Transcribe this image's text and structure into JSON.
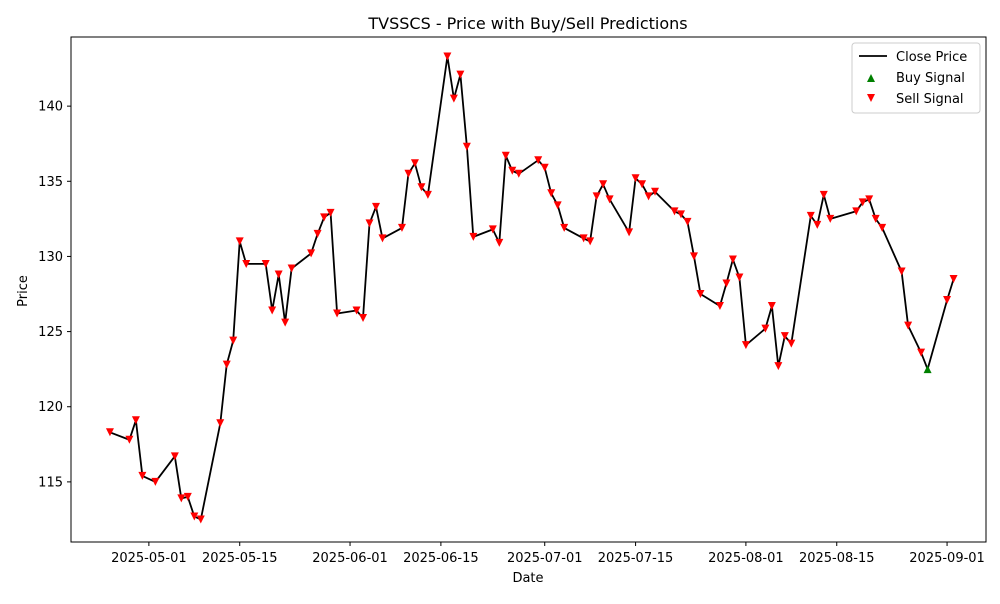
{
  "chart_data": {
    "type": "line",
    "title": "TVSSCS - Price with Buy/Sell Predictions",
    "xlabel": "Date",
    "ylabel": "Price",
    "xlim": [
      "2025-04-19",
      "2025-09-07"
    ],
    "ylim": [
      111.0,
      144.6
    ],
    "x_ticks": [
      "2025-05-01",
      "2025-05-15",
      "2025-06-01",
      "2025-06-15",
      "2025-07-01",
      "2025-07-15",
      "2025-08-01",
      "2025-08-15",
      "2025-09-01"
    ],
    "y_ticks": [
      115,
      120,
      125,
      130,
      135,
      140
    ],
    "grid": false,
    "legend_position": "top-right",
    "legend": [
      "Close Price",
      "Buy Signal",
      "Sell Signal"
    ],
    "colors": {
      "line": "#000000",
      "buy": "#008000",
      "sell": "#ff0000"
    },
    "series": [
      {
        "name": "Close Price",
        "points": [
          [
            "2025-04-25",
            118.3
          ],
          [
            "2025-04-28",
            117.8
          ],
          [
            "2025-04-29",
            119.1
          ],
          [
            "2025-04-30",
            115.4
          ],
          [
            "2025-05-02",
            115.0
          ],
          [
            "2025-05-05",
            116.7
          ],
          [
            "2025-05-06",
            113.9
          ],
          [
            "2025-05-07",
            114.0
          ],
          [
            "2025-05-08",
            112.7
          ],
          [
            "2025-05-09",
            112.5
          ],
          [
            "2025-05-12",
            118.9
          ],
          [
            "2025-05-13",
            122.8
          ],
          [
            "2025-05-14",
            124.4
          ],
          [
            "2025-05-15",
            131.0
          ],
          [
            "2025-05-16",
            129.5
          ],
          [
            "2025-05-19",
            129.5
          ],
          [
            "2025-05-20",
            126.4
          ],
          [
            "2025-05-21",
            128.8
          ],
          [
            "2025-05-22",
            125.6
          ],
          [
            "2025-05-23",
            129.2
          ],
          [
            "2025-05-26",
            130.2
          ],
          [
            "2025-05-27",
            131.5
          ],
          [
            "2025-05-28",
            132.6
          ],
          [
            "2025-05-29",
            132.9
          ],
          [
            "2025-05-30",
            126.2
          ],
          [
            "2025-06-02",
            126.4
          ],
          [
            "2025-06-03",
            125.9
          ],
          [
            "2025-06-04",
            132.2
          ],
          [
            "2025-06-05",
            133.3
          ],
          [
            "2025-06-06",
            131.2
          ],
          [
            "2025-06-09",
            131.9
          ],
          [
            "2025-06-10",
            135.5
          ],
          [
            "2025-06-11",
            136.2
          ],
          [
            "2025-06-12",
            134.6
          ],
          [
            "2025-06-13",
            134.1
          ],
          [
            "2025-06-16",
            143.3
          ],
          [
            "2025-06-17",
            140.5
          ],
          [
            "2025-06-18",
            142.1
          ],
          [
            "2025-06-19",
            137.3
          ],
          [
            "2025-06-20",
            131.3
          ],
          [
            "2025-06-23",
            131.8
          ],
          [
            "2025-06-24",
            130.9
          ],
          [
            "2025-06-25",
            136.7
          ],
          [
            "2025-06-26",
            135.7
          ],
          [
            "2025-06-27",
            135.5
          ],
          [
            "2025-06-30",
            136.4
          ],
          [
            "2025-07-01",
            135.9
          ],
          [
            "2025-07-02",
            134.2
          ],
          [
            "2025-07-03",
            133.4
          ],
          [
            "2025-07-04",
            131.9
          ],
          [
            "2025-07-07",
            131.2
          ],
          [
            "2025-07-08",
            131.0
          ],
          [
            "2025-07-09",
            134.0
          ],
          [
            "2025-07-10",
            134.8
          ],
          [
            "2025-07-11",
            133.8
          ],
          [
            "2025-07-14",
            131.6
          ],
          [
            "2025-07-15",
            135.2
          ],
          [
            "2025-07-16",
            134.8
          ],
          [
            "2025-07-17",
            134.0
          ],
          [
            "2025-07-18",
            134.3
          ],
          [
            "2025-07-21",
            133.0
          ],
          [
            "2025-07-22",
            132.8
          ],
          [
            "2025-07-23",
            132.3
          ],
          [
            "2025-07-24",
            130.0
          ],
          [
            "2025-07-25",
            127.5
          ],
          [
            "2025-07-28",
            126.7
          ],
          [
            "2025-07-29",
            128.2
          ],
          [
            "2025-07-30",
            129.8
          ],
          [
            "2025-07-31",
            128.6
          ],
          [
            "2025-08-01",
            124.1
          ],
          [
            "2025-08-04",
            125.2
          ],
          [
            "2025-08-05",
            126.7
          ],
          [
            "2025-08-06",
            122.7
          ],
          [
            "2025-08-07",
            124.7
          ],
          [
            "2025-08-08",
            124.2
          ],
          [
            "2025-08-11",
            132.7
          ],
          [
            "2025-08-12",
            132.1
          ],
          [
            "2025-08-13",
            134.1
          ],
          [
            "2025-08-14",
            132.5
          ],
          [
            "2025-08-18",
            133.0
          ],
          [
            "2025-08-19",
            133.6
          ],
          [
            "2025-08-20",
            133.8
          ],
          [
            "2025-08-21",
            132.5
          ],
          [
            "2025-08-22",
            131.9
          ],
          [
            "2025-08-25",
            129.0
          ],
          [
            "2025-08-26",
            125.4
          ],
          [
            "2025-08-28",
            123.6
          ],
          [
            "2025-08-29",
            122.5
          ],
          [
            "2025-09-01",
            127.1
          ],
          [
            "2025-09-02",
            128.5
          ]
        ]
      }
    ],
    "buy_signals": [
      [
        "2025-08-29",
        122.5
      ]
    ],
    "sell_signals": [
      [
        "2025-04-25",
        118.3
      ],
      [
        "2025-04-28",
        117.8
      ],
      [
        "2025-04-29",
        119.1
      ],
      [
        "2025-04-30",
        115.4
      ],
      [
        "2025-05-02",
        115.0
      ],
      [
        "2025-05-05",
        116.7
      ],
      [
        "2025-05-06",
        113.9
      ],
      [
        "2025-05-07",
        114.0
      ],
      [
        "2025-05-08",
        112.7
      ],
      [
        "2025-05-09",
        112.5
      ],
      [
        "2025-05-12",
        118.9
      ],
      [
        "2025-05-13",
        122.8
      ],
      [
        "2025-05-14",
        124.4
      ],
      [
        "2025-05-15",
        131.0
      ],
      [
        "2025-05-16",
        129.5
      ],
      [
        "2025-05-19",
        129.5
      ],
      [
        "2025-05-20",
        126.4
      ],
      [
        "2025-05-21",
        128.8
      ],
      [
        "2025-05-22",
        125.6
      ],
      [
        "2025-05-23",
        129.2
      ],
      [
        "2025-05-26",
        130.2
      ],
      [
        "2025-05-27",
        131.5
      ],
      [
        "2025-05-28",
        132.6
      ],
      [
        "2025-05-29",
        132.9
      ],
      [
        "2025-05-30",
        126.2
      ],
      [
        "2025-06-02",
        126.4
      ],
      [
        "2025-06-03",
        125.9
      ],
      [
        "2025-06-04",
        132.2
      ],
      [
        "2025-06-05",
        133.3
      ],
      [
        "2025-06-06",
        131.2
      ],
      [
        "2025-06-09",
        131.9
      ],
      [
        "2025-06-10",
        135.5
      ],
      [
        "2025-06-11",
        136.2
      ],
      [
        "2025-06-12",
        134.6
      ],
      [
        "2025-06-13",
        134.1
      ],
      [
        "2025-06-16",
        143.3
      ],
      [
        "2025-06-17",
        140.5
      ],
      [
        "2025-06-18",
        142.1
      ],
      [
        "2025-06-19",
        137.3
      ],
      [
        "2025-06-20",
        131.3
      ],
      [
        "2025-06-23",
        131.8
      ],
      [
        "2025-06-24",
        130.9
      ],
      [
        "2025-06-25",
        136.7
      ],
      [
        "2025-06-26",
        135.7
      ],
      [
        "2025-06-27",
        135.5
      ],
      [
        "2025-06-30",
        136.4
      ],
      [
        "2025-07-01",
        135.9
      ],
      [
        "2025-07-02",
        134.2
      ],
      [
        "2025-07-03",
        133.4
      ],
      [
        "2025-07-04",
        131.9
      ],
      [
        "2025-07-07",
        131.2
      ],
      [
        "2025-07-08",
        131.0
      ],
      [
        "2025-07-09",
        134.0
      ],
      [
        "2025-07-10",
        134.8
      ],
      [
        "2025-07-11",
        133.8
      ],
      [
        "2025-07-14",
        131.6
      ],
      [
        "2025-07-15",
        135.2
      ],
      [
        "2025-07-16",
        134.8
      ],
      [
        "2025-07-17",
        134.0
      ],
      [
        "2025-07-18",
        134.3
      ],
      [
        "2025-07-21",
        133.0
      ],
      [
        "2025-07-22",
        132.8
      ],
      [
        "2025-07-23",
        132.3
      ],
      [
        "2025-07-24",
        130.0
      ],
      [
        "2025-07-25",
        127.5
      ],
      [
        "2025-07-28",
        126.7
      ],
      [
        "2025-07-29",
        128.2
      ],
      [
        "2025-07-30",
        129.8
      ],
      [
        "2025-07-31",
        128.6
      ],
      [
        "2025-08-01",
        124.1
      ],
      [
        "2025-08-04",
        125.2
      ],
      [
        "2025-08-05",
        126.7
      ],
      [
        "2025-08-06",
        122.7
      ],
      [
        "2025-08-07",
        124.7
      ],
      [
        "2025-08-08",
        124.2
      ],
      [
        "2025-08-11",
        132.7
      ],
      [
        "2025-08-12",
        132.1
      ],
      [
        "2025-08-13",
        134.1
      ],
      [
        "2025-08-14",
        132.5
      ],
      [
        "2025-08-18",
        133.0
      ],
      [
        "2025-08-19",
        133.6
      ],
      [
        "2025-08-20",
        133.8
      ],
      [
        "2025-08-21",
        132.5
      ],
      [
        "2025-08-22",
        131.9
      ],
      [
        "2025-08-25",
        129.0
      ],
      [
        "2025-08-26",
        125.4
      ],
      [
        "2025-08-28",
        123.6
      ],
      [
        "2025-09-01",
        127.1
      ],
      [
        "2025-09-02",
        128.5
      ]
    ]
  }
}
